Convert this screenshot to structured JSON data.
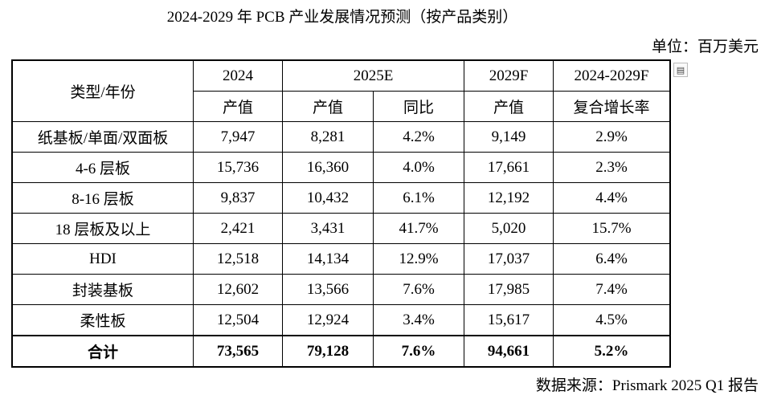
{
  "title": "2024-2029 年 PCB 产业发展情况预测（按产品类别）",
  "unit": "单位：百万美元",
  "expand_icon": "expand-icon",
  "header": {
    "type_year": "类型/年份",
    "y2024": "2024",
    "y2025": "2025E",
    "y2029": "2029F",
    "cagr_period": "2024-2029F",
    "output": "产值",
    "yoy": "同比",
    "cagr": "复合增长率"
  },
  "rows": [
    {
      "type": "纸基板/单面/双面板",
      "v2024": "7,947",
      "v2025": "8,281",
      "yoy": "4.2%",
      "v2029": "9,149",
      "cagr": "2.9%"
    },
    {
      "type": "4-6 层板",
      "v2024": "15,736",
      "v2025": "16,360",
      "yoy": "4.0%",
      "v2029": "17,661",
      "cagr": "2.3%"
    },
    {
      "type": "8-16 层板",
      "v2024": "9,837",
      "v2025": "10,432",
      "yoy": "6.1%",
      "v2029": "12,192",
      "cagr": "4.4%"
    },
    {
      "type": "18 层板及以上",
      "v2024": "2,421",
      "v2025": "3,431",
      "yoy": "41.7%",
      "v2029": "5,020",
      "cagr": "15.7%"
    },
    {
      "type": "HDI",
      "v2024": "12,518",
      "v2025": "14,134",
      "yoy": "12.9%",
      "v2029": "17,037",
      "cagr": "6.4%"
    },
    {
      "type": "封装基板",
      "v2024": "12,602",
      "v2025": "13,566",
      "yoy": "7.6%",
      "v2029": "17,985",
      "cagr": "7.4%"
    },
    {
      "type": "柔性板",
      "v2024": "12,504",
      "v2025": "12,924",
      "yoy": "3.4%",
      "v2029": "15,617",
      "cagr": "4.5%"
    }
  ],
  "total": {
    "type": "合计",
    "v2024": "73,565",
    "v2025": "79,128",
    "yoy": "7.6%",
    "v2029": "94,661",
    "cagr": "5.2%"
  },
  "source": "数据来源：Prismark 2025 Q1 报告"
}
